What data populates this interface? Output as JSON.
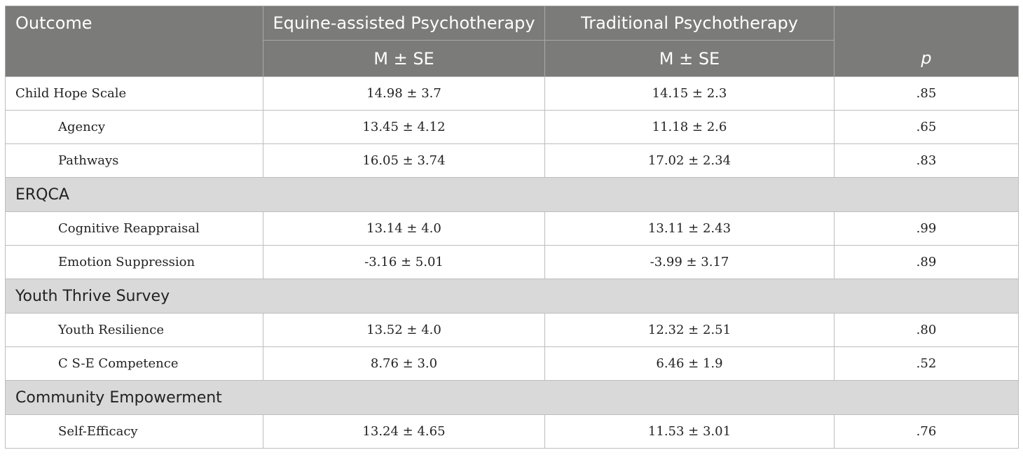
{
  "header": {
    "outcome": "Outcome",
    "group1": "Equine-assisted Psychotherapy",
    "group2": "Traditional Psychotherapy",
    "sub1": "M ± SE",
    "sub2": "M ± SE",
    "p": "p"
  },
  "rows": [
    {
      "label": "Child Hope Scale",
      "eap": "14.98 ± 3.7",
      "tp": "14.15 ± 2.3",
      "p": ".85"
    },
    {
      "label": "Agency",
      "eap": "13.45 ± 4.12",
      "tp": "11.18 ± 2.6",
      "p": ".65"
    },
    {
      "label": "Pathways",
      "eap": "16.05 ± 3.74",
      "tp": "17.02 ± 2.34",
      "p": ".83"
    },
    {
      "section": "ERQCA"
    },
    {
      "label": "Cognitive Reappraisal",
      "eap": "13.14 ± 4.0",
      "tp": "13.11 ± 2.43",
      "p": ".99"
    },
    {
      "label": "Emotion Suppression",
      "eap": "-3.16 ± 5.01",
      "tp": "-3.99 ± 3.17",
      "p": ".89"
    },
    {
      "section": "Youth Thrive Survey"
    },
    {
      "label": "Youth Resilience",
      "eap": "13.52 ± 4.0",
      "tp": "12.32 ± 2.51",
      "p": ".80"
    },
    {
      "label": "C S-E Competence",
      "eap": "8.76 ± 3.0",
      "tp": "6.46 ± 1.9",
      "p": ".52"
    },
    {
      "section": "Community Empowerment"
    },
    {
      "label": "Self-Efficacy",
      "eap": "13.24 ± 4.65",
      "tp": "11.53 ± 3.01",
      "p": ".76"
    }
  ]
}
